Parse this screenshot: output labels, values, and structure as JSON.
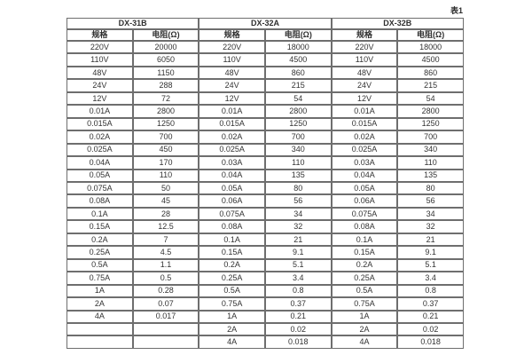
{
  "caption": "表1",
  "table": {
    "groups": [
      {
        "name": "DX-31B",
        "columns": [
          "规格",
          "电阻(Ω)"
        ],
        "rows": [
          [
            "220V",
            "20000"
          ],
          [
            "110V",
            "6050"
          ],
          [
            "48V",
            "1150"
          ],
          [
            "24V",
            "288"
          ],
          [
            "12V",
            "72"
          ],
          [
            "0.01A",
            "2800"
          ],
          [
            "0.015A",
            "1250"
          ],
          [
            "0.02A",
            "700"
          ],
          [
            "0.025A",
            "450"
          ],
          [
            "0.04A",
            "170"
          ],
          [
            "0.05A",
            "110"
          ],
          [
            "0.075A",
            "50"
          ],
          [
            "0.08A",
            "45"
          ],
          [
            "0.1A",
            "28"
          ],
          [
            "0.15A",
            "12.5"
          ],
          [
            "0.2A",
            "7"
          ],
          [
            "0.25A",
            "4.5"
          ],
          [
            "0.5A",
            "1.1"
          ],
          [
            "0.75A",
            "0.5"
          ],
          [
            "1A",
            "0.28"
          ],
          [
            "2A",
            "0.07"
          ],
          [
            "4A",
            "0.017"
          ],
          [
            "",
            ""
          ],
          [
            "",
            ""
          ]
        ]
      },
      {
        "name": "DX-32A",
        "columns": [
          "规格",
          "电阻(Ω)"
        ],
        "rows": [
          [
            "220V",
            "18000"
          ],
          [
            "110V",
            "4500"
          ],
          [
            "48V",
            "860"
          ],
          [
            "24V",
            "215"
          ],
          [
            "12V",
            "54"
          ],
          [
            "0.01A",
            "2800"
          ],
          [
            "0.015A",
            "1250"
          ],
          [
            "0.02A",
            "700"
          ],
          [
            "0.025A",
            "340"
          ],
          [
            "0.03A",
            "110"
          ],
          [
            "0.04A",
            "135"
          ],
          [
            "0.05A",
            "80"
          ],
          [
            "0.06A",
            "56"
          ],
          [
            "0.075A",
            "34"
          ],
          [
            "0.08A",
            "32"
          ],
          [
            "0.1A",
            "21"
          ],
          [
            "0.15A",
            "9.1"
          ],
          [
            "0.2A",
            "5.1"
          ],
          [
            "0.25A",
            "3.4"
          ],
          [
            "0.5A",
            "0.8"
          ],
          [
            "0.75A",
            "0.37"
          ],
          [
            "1A",
            "0.21"
          ],
          [
            "2A",
            "0.02"
          ],
          [
            "4A",
            "0.018"
          ]
        ]
      },
      {
        "name": "DX-32B",
        "columns": [
          "规格",
          "电阻(Ω)"
        ],
        "rows": [
          [
            "220V",
            "18000"
          ],
          [
            "110V",
            "4500"
          ],
          [
            "48V",
            "860"
          ],
          [
            "24V",
            "215"
          ],
          [
            "12V",
            "54"
          ],
          [
            "0.01A",
            "2800"
          ],
          [
            "0.015A",
            "1250"
          ],
          [
            "0.02A",
            "700"
          ],
          [
            "0.025A",
            "340"
          ],
          [
            "0.03A",
            "110"
          ],
          [
            "0.04A",
            "135"
          ],
          [
            "0.05A",
            "80"
          ],
          [
            "0.06A",
            "56"
          ],
          [
            "0.075A",
            "34"
          ],
          [
            "0.08A",
            "32"
          ],
          [
            "0.1A",
            "21"
          ],
          [
            "0.15A",
            "9.1"
          ],
          [
            "0.2A",
            "5.1"
          ],
          [
            "0.25A",
            "3.4"
          ],
          [
            "0.5A",
            "0.8"
          ],
          [
            "0.75A",
            "0.37"
          ],
          [
            "1A",
            "0.21"
          ],
          [
            "2A",
            "0.02"
          ],
          [
            "4A",
            "0.018"
          ]
        ]
      }
    ]
  }
}
